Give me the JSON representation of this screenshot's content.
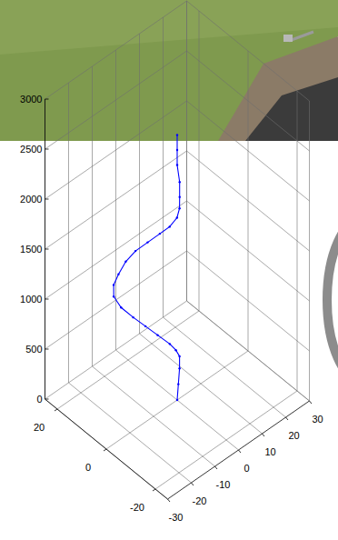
{
  "chart_data": {
    "type": "line3d",
    "series": [
      {
        "color": "#0000ff",
        "marker": ".",
        "line_style": "solid",
        "x": [
          0,
          0.5,
          1,
          1,
          0.5,
          0,
          -1,
          -2,
          -3,
          -4,
          -4,
          -3,
          -2,
          -1,
          0,
          1,
          2,
          2,
          2,
          1,
          0,
          0,
          0,
          0,
          0
        ],
        "y": [
          0,
          0,
          0,
          0,
          1,
          3,
          7,
          11,
          15,
          19,
          22,
          23,
          22,
          20,
          17,
          13,
          9,
          5,
          2,
          0,
          -1,
          -1,
          0,
          0,
          0
        ],
        "z": [
          0,
          150,
          300,
          420,
          470,
          500,
          525,
          550,
          575,
          610,
          660,
          740,
          850,
          1000,
          1150,
          1300,
          1450,
          1600,
          1750,
          1900,
          2050,
          2200,
          2350,
          2500,
          2650
        ]
      }
    ],
    "xlim": [
      -30,
      30
    ],
    "xticks": [
      -30,
      -20,
      -10,
      0,
      10,
      20,
      30
    ],
    "ylim": [
      -25,
      25
    ],
    "yticks": [
      -20,
      0,
      20
    ],
    "zlim": [
      0,
      3000
    ],
    "zticks": [
      0,
      500,
      1000,
      1500,
      2000,
      2500,
      3000
    ],
    "grid": true
  }
}
